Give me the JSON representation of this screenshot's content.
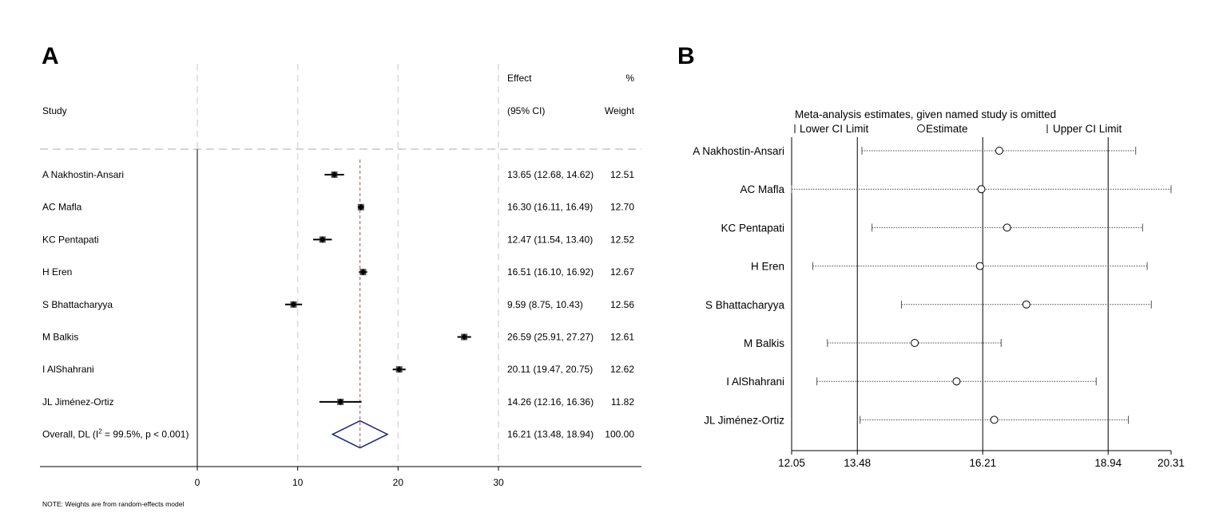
{
  "chart_data": [
    {
      "type": "forest",
      "panel_label": "A",
      "headers": {
        "study": "Study",
        "effect_top": "Effect",
        "effect_bottom": "(95% CI)",
        "weight_top": "%",
        "weight_bottom": "Weight"
      },
      "xlim": [
        0,
        30
      ],
      "xticks": [
        "0",
        "10",
        "20",
        "30"
      ],
      "grid": true,
      "studies": [
        {
          "name": "A Nakhostin-Ansari",
          "effect": 13.65,
          "lower": 12.68,
          "upper": 14.62,
          "weight": 12.51,
          "label": "13.65 (12.68, 14.62)",
          "weight_label": "12.51"
        },
        {
          "name": "AC Mafla",
          "effect": 16.3,
          "lower": 16.11,
          "upper": 16.49,
          "weight": 12.7,
          "label": "16.30 (16.11, 16.49)",
          "weight_label": "12.70"
        },
        {
          "name": "KC Pentapati",
          "effect": 12.47,
          "lower": 11.54,
          "upper": 13.4,
          "weight": 12.52,
          "label": "12.47 (11.54, 13.40)",
          "weight_label": "12.52"
        },
        {
          "name": "H Eren",
          "effect": 16.51,
          "lower": 16.1,
          "upper": 16.92,
          "weight": 12.67,
          "label": "16.51 (16.10, 16.92)",
          "weight_label": "12.67"
        },
        {
          "name": "S Bhattacharyya",
          "effect": 9.59,
          "lower": 8.75,
          "upper": 10.43,
          "weight": 12.56,
          "label": "9.59 (8.75, 10.43)",
          "weight_label": "12.56"
        },
        {
          "name": "M Balkis",
          "effect": 26.59,
          "lower": 25.91,
          "upper": 27.27,
          "weight": 12.61,
          "label": "26.59 (25.91, 27.27)",
          "weight_label": "12.61"
        },
        {
          "name": "I AlShahrani",
          "effect": 20.11,
          "lower": 19.47,
          "upper": 20.75,
          "weight": 12.62,
          "label": "20.11 (19.47, 20.75)",
          "weight_label": "12.62"
        },
        {
          "name": "JL Jiménez-Ortiz",
          "effect": 14.26,
          "lower": 12.16,
          "upper": 16.36,
          "weight": 11.82,
          "label": "14.26 (12.16, 16.36)",
          "weight_label": "11.82"
        }
      ],
      "overall": {
        "name_prefix": "Overall, DL (I",
        "superscript": "2",
        "name_suffix": " = 99.5%, p < 0.001)",
        "effect": 16.21,
        "lower": 13.48,
        "upper": 18.94,
        "label": "16.21 (13.48, 18.94)",
        "weight_label": "100.00"
      },
      "note": "NOTE: Weights are from random-effects model",
      "colors": {
        "diamond": "#1a237e",
        "reference_line": "#a05050",
        "grid": "#d9d9d9"
      }
    },
    {
      "type": "sensitivity",
      "panel_label": "B",
      "title": "Meta-analysis estimates, given named study is omitted",
      "legend": {
        "lower": "Lower CI Limit",
        "estimate": "Estimate",
        "upper": "Upper CI Limit"
      },
      "xlim": [
        12.05,
        20.31
      ],
      "xticks": [
        "12.05",
        "13.48",
        "16.21",
        "18.94",
        "20.31"
      ],
      "reference_lines": [
        13.48,
        16.21,
        18.94
      ],
      "studies": [
        {
          "name": "A Nakhostin-Ansari",
          "estimate": 16.57,
          "lower": 13.58,
          "upper": 19.54
        },
        {
          "name": "AC Mafla",
          "estimate": 16.18,
          "lower": 12.05,
          "upper": 20.31
        },
        {
          "name": "KC Pentapati",
          "estimate": 16.74,
          "lower": 13.8,
          "upper": 19.69
        },
        {
          "name": "H Eren",
          "estimate": 16.15,
          "lower": 12.51,
          "upper": 19.79
        },
        {
          "name": "S Bhattacharyya",
          "estimate": 17.16,
          "lower": 14.44,
          "upper": 19.88
        },
        {
          "name": "M Balkis",
          "estimate": 14.73,
          "lower": 12.83,
          "upper": 16.61
        },
        {
          "name": "I AlShahrani",
          "estimate": 15.64,
          "lower": 12.6,
          "upper": 18.68
        },
        {
          "name": "JL Jiménez-Ortiz",
          "estimate": 16.46,
          "lower": 13.54,
          "upper": 19.38
        }
      ]
    }
  ]
}
